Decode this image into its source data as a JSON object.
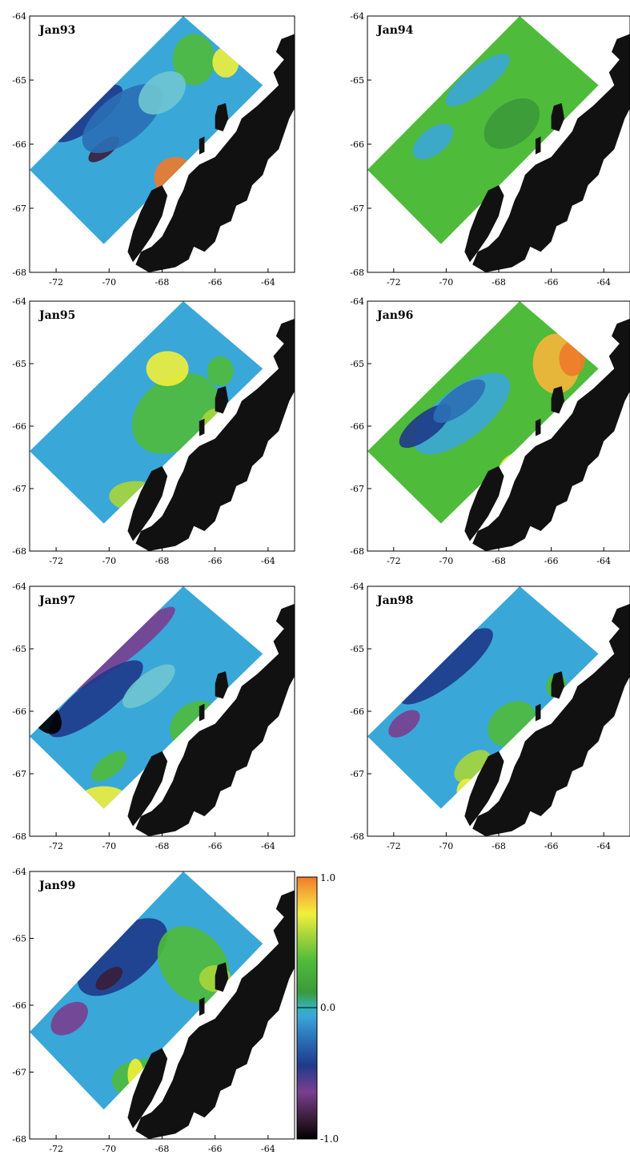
{
  "figure": {
    "x_ticks": [
      "-72",
      "-70",
      "-68",
      "-66",
      "-64"
    ],
    "y_ticks": [
      "-64",
      "-65",
      "-66",
      "-67",
      "-68"
    ],
    "x_range": [
      -73.0,
      -63.0
    ],
    "y_range": [
      -68.0,
      -64.0
    ],
    "panels": [
      {
        "label": "Jan93",
        "scheme": "jan93",
        "show_x_ticks": true,
        "show_y_ticks": true
      },
      {
        "label": "Jan94",
        "scheme": "jan94",
        "show_x_ticks": true,
        "show_y_ticks": true
      },
      {
        "label": "Jan95",
        "scheme": "jan95",
        "show_x_ticks": true,
        "show_y_ticks": true
      },
      {
        "label": "Jan96",
        "scheme": "jan96",
        "show_x_ticks": true,
        "show_y_ticks": true
      },
      {
        "label": "Jan97",
        "scheme": "jan97",
        "show_x_ticks": true,
        "show_y_ticks": true
      },
      {
        "label": "Jan98",
        "scheme": "jan98",
        "show_x_ticks": true,
        "show_y_ticks": true
      },
      {
        "label": "Jan99",
        "scheme": "jan99",
        "show_x_ticks": true,
        "show_y_ticks": true
      }
    ],
    "colorbar": {
      "min_label": "-1.0",
      "mid_label": "0.0",
      "max_label": "1.0",
      "range": [
        -1.0,
        1.0
      ],
      "stops": [
        "#000000",
        "#3a1e3a",
        "#7a3f8f",
        "#1f3a8a",
        "#2b6fb5",
        "#3aa7d9",
        "#35b0a8",
        "#3a9a3a",
        "#4fbb3a",
        "#a8d63a",
        "#f2f03a",
        "#f5b63a",
        "#f07a2a"
      ]
    },
    "colors": {
      "land": "#111111",
      "frame": "#000000"
    }
  }
}
